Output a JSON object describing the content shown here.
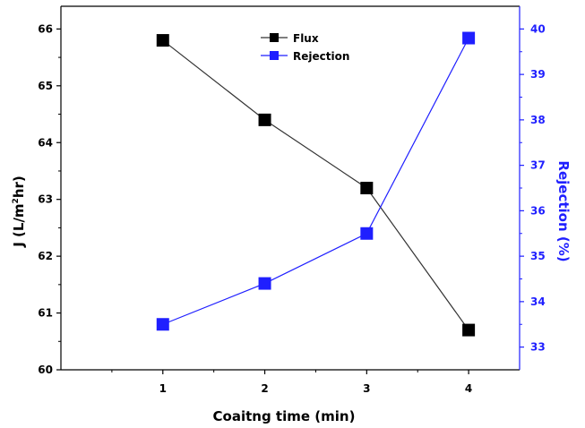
{
  "chart_data": {
    "type": "line",
    "title": "",
    "x": [
      1,
      2,
      3,
      4
    ],
    "xlabel": "Coaitng time (min)",
    "xlim": [
      0.0,
      4.5
    ],
    "xticks": [
      "1",
      "2",
      "3",
      "4"
    ],
    "y_left": {
      "label_main": "J (L/m",
      "label_sup1": "2",
      "label_mid": "hr)",
      "ylim": [
        60,
        66.4
      ],
      "ticks": [
        "60",
        "61",
        "62",
        "63",
        "64",
        "65",
        "66"
      ]
    },
    "y_right": {
      "label": "Rejection (%)",
      "ylim": [
        32.5,
        40.5
      ],
      "ticks": [
        "33",
        "34",
        "35",
        "36",
        "37",
        "38",
        "39",
        "40"
      ],
      "color": "#1f1fff"
    },
    "series": [
      {
        "name": "Flux",
        "axis": "left",
        "color": "#000000",
        "line_color": "#333333",
        "marker": "square",
        "values": [
          65.8,
          64.4,
          63.2,
          60.7
        ]
      },
      {
        "name": "Rejection",
        "axis": "right",
        "color": "#1f1fff",
        "line_color": "#1f1fff",
        "marker": "square",
        "values": [
          33.5,
          34.4,
          35.5,
          39.8
        ]
      }
    ],
    "legend": {
      "position": "top-center",
      "entries": [
        "Flux",
        "Rejection"
      ]
    },
    "grid": false
  }
}
